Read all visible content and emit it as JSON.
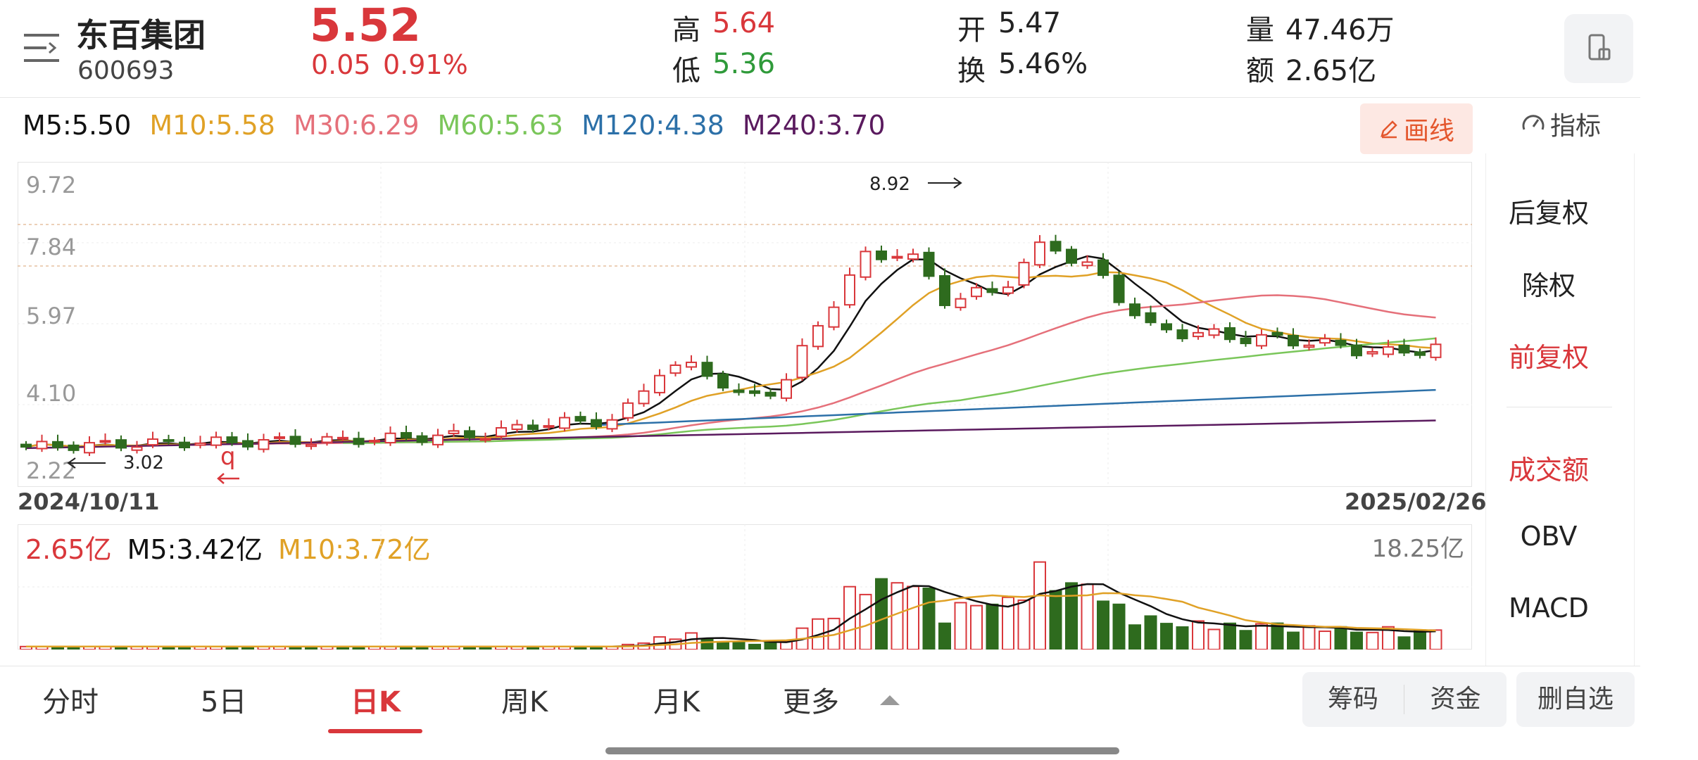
{
  "header": {
    "name": "东百集团",
    "code": "600693",
    "price": "5.52",
    "change": "0.05",
    "change_pct": "0.91%",
    "high_label": "高",
    "high": "5.64",
    "low_label": "低",
    "low": "5.36",
    "open_label": "开",
    "open": "5.47",
    "turnover_label": "换",
    "turnover": "5.46%",
    "volume_label": "量",
    "volume": "47.46万",
    "amount_label": "额",
    "amount": "2.65亿"
  },
  "ma_legend": {
    "m5": "M5:5.50",
    "m10": "M10:5.58",
    "m30": "M30:6.29",
    "m60": "M60:5.63",
    "m120": "M120:4.38",
    "m240": "M240:3.70"
  },
  "draw_button": "画线",
  "indicator_label": "指标",
  "colors": {
    "red": "#d9373b",
    "green": "#2f9a3a",
    "candle_green": "#2e6b1e",
    "m5": "#111111",
    "m10": "#e0a126",
    "m30": "#e5707a",
    "m60": "#7ac65a",
    "m120": "#2c70a8",
    "m240": "#5a1a5e"
  },
  "price_axis": [
    "9.72",
    "7.84",
    "5.97",
    "4.10",
    "2.22"
  ],
  "annotations": {
    "max": "8.92",
    "min": "3.02",
    "mark": "q"
  },
  "date_start": "2024/10/11",
  "date_end": "2025/02/26",
  "volume_legend": {
    "current": "2.65亿",
    "m5": "M5:3.42亿",
    "m10": "M10:3.72亿",
    "max": "18.25亿"
  },
  "right_panel": {
    "items": [
      "后复权",
      "除权",
      "前复权",
      "成交额",
      "OBV",
      "MACD"
    ]
  },
  "tabs": [
    "分时",
    "5日",
    "日K",
    "周K",
    "月K",
    "更多"
  ],
  "bottom_buttons": {
    "chips": "筹码",
    "funds": "资金",
    "remove": "删自选"
  }
}
